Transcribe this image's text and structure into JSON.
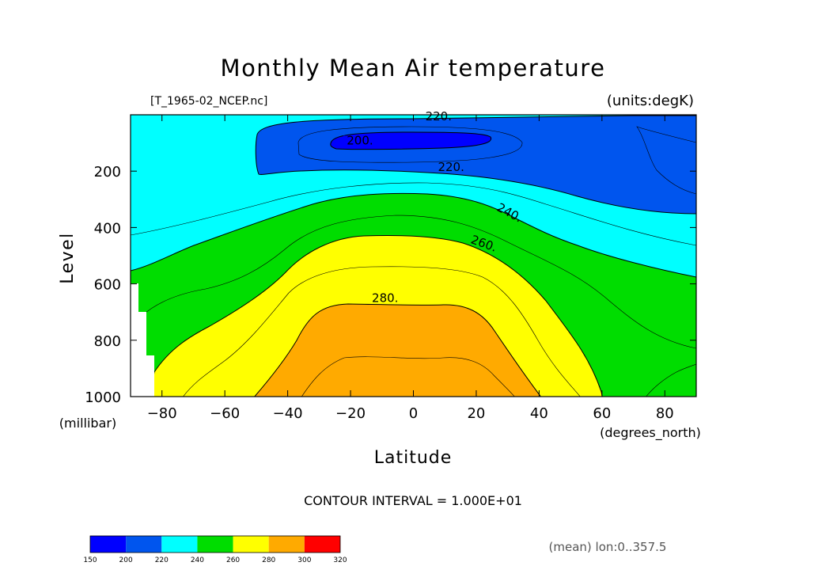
{
  "figure": {
    "title": "Monthly Mean Air temperature",
    "file_label": "[T_1965-02_NCEP.nc]",
    "units_label": "(units:degK)",
    "contour_interval_text": "CONTOUR INTERVAL = 1.000E+01",
    "mean_note": "(mean) lon:0..357.5"
  },
  "chart_data": {
    "type": "contour",
    "title": "Monthly Mean Air temperature",
    "variable_units": "degK",
    "xlabel": "Latitude",
    "x_units": "(degrees_north)",
    "ylabel": "Level",
    "y_units": "(millibar)",
    "xlim": [
      -90,
      90
    ],
    "ylim": [
      1000,
      0
    ],
    "y_reversed": true,
    "x_ticks": [
      -80,
      -60,
      -40,
      -20,
      0,
      20,
      40,
      60,
      80
    ],
    "y_ticks": [
      200,
      400,
      600,
      800,
      1000
    ],
    "contour_interval": 10,
    "contour_labels": [
      {
        "text": "220.",
        "lat": 8,
        "level": 20
      },
      {
        "text": "200.",
        "lat": -17,
        "level": 105
      },
      {
        "text": "220.",
        "lat": 12,
        "level": 200
      },
      {
        "text": "240.",
        "lat": 30,
        "level": 360
      },
      {
        "text": "260.",
        "lat": 22,
        "level": 470
      },
      {
        "text": "280.",
        "lat": -9,
        "level": 665
      }
    ],
    "bands": [
      {
        "range": [
          150,
          200
        ],
        "color": "#0000ff"
      },
      {
        "range": [
          200,
          220
        ],
        "color": "#0055ee"
      },
      {
        "range": [
          220,
          240
        ],
        "color": "#00ffff"
      },
      {
        "range": [
          240,
          260
        ],
        "color": "#00dd00"
      },
      {
        "range": [
          260,
          280
        ],
        "color": "#ffff00"
      },
      {
        "range": [
          280,
          300
        ],
        "color": "#ffaa00"
      },
      {
        "range": [
          300,
          320
        ],
        "color": "#ff0000"
      }
    ],
    "colorbar_ticks": [
      150,
      200,
      220,
      240,
      260,
      280,
      300,
      320
    ]
  }
}
